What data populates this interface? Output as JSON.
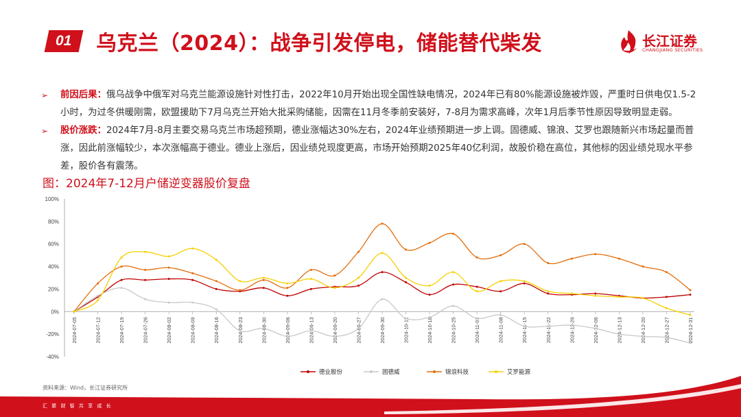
{
  "header": {
    "section_number": "01",
    "title": "乌克兰（2024）：战争引发停电，储能替代柴发",
    "logo_name": "长江证券",
    "logo_en": "CHANGJIANG SECURITIES"
  },
  "bullets": [
    {
      "head": "前因后果：",
      "text": "俄乌战争中俄军对乌克兰能源设施针对性打击，2022年10月开始出现全国性缺电情况，2024年已有80%能源设施被炸毁，严重时日供电仅1.5-2小时，为过冬供暖刚需，欧盟援助下7月乌克兰开始大批采购储能，因需在11月冬季前安装好，7-8月为需求高峰，次年1月后季节性原因导致明显走弱。"
    },
    {
      "head": "股价涨跌：",
      "text": "2024年7月-8月主要交易乌克兰市场超预期，德业涨幅达30%左右，2024年业绩预期进一步上调。固德威、锦浪、艾罗也跟随新兴市场起量而普涨，因此前涨幅较少，本次涨幅高于德业。德业上涨后，因业绩兑现度更高，市场开始预期2025年40亿利润，故股价稳在高位，其他标的因业绩兑现水平参差，股价各有震荡。"
    }
  ],
  "figure_title": "图：2024年7-12月户储逆变器股价复盘",
  "source": "资料来源：Wind，长江证券研究所",
  "slogan": "汇 聚 财 智    共 享 成 长",
  "chart_data": {
    "type": "line",
    "x": [
      "2024-07-05",
      "2024-07-12",
      "2024-07-19",
      "2024-07-26",
      "2024-08-02",
      "2024-08-09",
      "2024-08-16",
      "2024-08-23",
      "2024-08-30",
      "2024-09-06",
      "2024-09-13",
      "2024-09-20",
      "2024-09-27",
      "2024-09-30",
      "2024-10-11",
      "2024-10-18",
      "2024-10-25",
      "2024-11-01",
      "2024-11-08",
      "2024-11-15",
      "2024-11-22",
      "2024-11-29",
      "2024-12-06",
      "2024-12-13",
      "2024-12-20",
      "2024-12-27",
      "2024-12-31"
    ],
    "ylim": [
      -40,
      100
    ],
    "yticks": [
      -40,
      -20,
      0,
      20,
      40,
      60,
      80,
      100
    ],
    "ytick_labels": [
      "-40%",
      "-20%",
      "0%",
      "20%",
      "40%",
      "60%",
      "80%",
      "100%"
    ],
    "legend_position": "bottom",
    "series": [
      {
        "name": "德业股份",
        "color": "#c00000",
        "values": [
          0,
          13,
          28,
          28,
          29,
          28,
          20,
          18,
          21,
          14,
          20,
          22,
          23,
          35,
          26,
          15,
          24,
          22,
          18,
          25,
          16,
          15,
          16,
          14,
          12,
          13,
          15
        ]
      },
      {
        "name": "固德威",
        "color": "#c8c8c8",
        "values": [
          0,
          14,
          21,
          11,
          8,
          8,
          2,
          -17,
          -15,
          -22,
          -17,
          -22,
          -15,
          11,
          -6,
          -5,
          5,
          -6,
          -3,
          -13,
          -13,
          -12,
          -15,
          -20,
          -22,
          -23,
          -28
        ]
      },
      {
        "name": "锦浪科技",
        "color": "#e36c0a",
        "values": [
          0,
          25,
          40,
          37,
          39,
          34,
          27,
          19,
          28,
          21,
          37,
          32,
          53,
          78,
          55,
          61,
          69,
          48,
          50,
          60,
          43,
          47,
          51,
          47,
          40,
          35,
          19
        ]
      },
      {
        "name": "艾罗能源",
        "color": "#f5d000",
        "values": [
          0,
          10,
          48,
          53,
          49,
          56,
          46,
          27,
          30,
          25,
          29,
          21,
          30,
          52,
          30,
          23,
          35,
          18,
          27,
          27,
          18,
          16,
          14,
          13,
          12,
          3,
          -3
        ]
      }
    ]
  }
}
